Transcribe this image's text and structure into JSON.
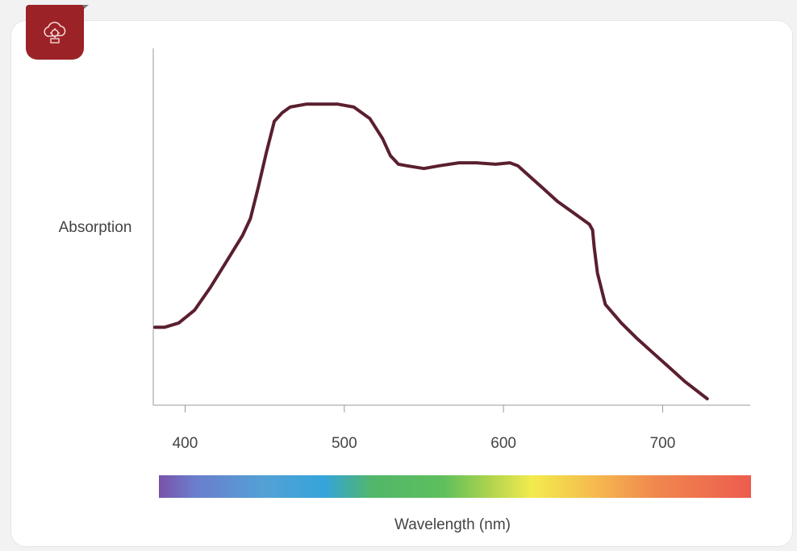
{
  "badge": {
    "icon": "cloud-gear-icon",
    "color": "#9b2226"
  },
  "chart_data": {
    "type": "line",
    "title": "",
    "xlabel": "Wavelength (nm)",
    "ylabel": "Absorption",
    "xticks": [
      "400",
      "500",
      "600",
      "700"
    ],
    "xlim": [
      380,
      755
    ],
    "ylim": [
      0,
      100
    ],
    "y_ticks_shown": false,
    "grid": false,
    "line_color": "#5a1f2e",
    "series": [
      {
        "x": [
          381,
          387,
          396,
          406,
          416,
          426,
          436,
          441,
          446,
          451,
          456,
          461,
          466,
          476,
          486,
          496,
          506,
          511,
          516,
          524,
          529,
          534,
          539,
          550,
          560,
          572,
          583,
          595,
          604,
          609,
          614,
          624,
          634,
          644,
          654,
          656,
          657,
          659,
          664,
          674,
          684,
          694,
          704,
          714,
          728
        ],
        "y": [
          25,
          25,
          26.5,
          31,
          39,
          48,
          57,
          63,
          74,
          86,
          97,
          100,
          102,
          103,
          103,
          103,
          102,
          100,
          98,
          91,
          85,
          82,
          81.5,
          80.5,
          81.5,
          82.5,
          82.5,
          82,
          82.5,
          81.5,
          79,
          74,
          69,
          65,
          61,
          59,
          53,
          44,
          33,
          26.5,
          21,
          16,
          11,
          6,
          0
        ]
      }
    ]
  }
}
